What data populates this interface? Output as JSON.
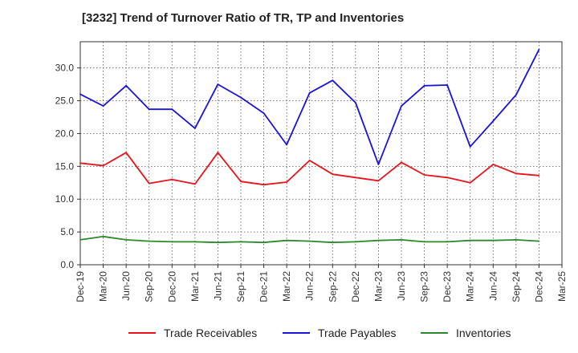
{
  "chart_data": {
    "type": "line",
    "title": "[3232]  Trend of Turnover Ratio of TR, TP and Inventories",
    "xlabel": "",
    "ylabel": "",
    "ylim": [
      0,
      34
    ],
    "yticks": [
      "0.0",
      "5.0",
      "10.0",
      "15.0",
      "20.0",
      "25.0",
      "30.0"
    ],
    "x": [
      "Dec-19",
      "Mar-20",
      "Jun-20",
      "Sep-20",
      "Dec-20",
      "Mar-21",
      "Jun-21",
      "Sep-21",
      "Dec-21",
      "Mar-22",
      "Jun-22",
      "Sep-22",
      "Dec-22",
      "Mar-23",
      "Jun-23",
      "Sep-23",
      "Dec-23",
      "Mar-24",
      "Jun-24",
      "Sep-24",
      "Dec-24",
      "Mar-25"
    ],
    "grid": true,
    "legend_position": "bottom",
    "series": [
      {
        "name": "Trade Receivables",
        "color": "#e8131b",
        "points": [
          [
            "Dec-19",
            15.5
          ],
          [
            "Mar-20",
            15.1
          ],
          [
            "Jun-20",
            17.1
          ],
          [
            "Sep-20",
            12.4
          ],
          [
            "Dec-20",
            13.0
          ],
          [
            "Mar-21",
            12.3
          ],
          [
            "Jun-21",
            17.1
          ],
          [
            "Sep-21",
            12.7
          ],
          [
            "Dec-21",
            12.2
          ],
          [
            "Mar-22",
            12.6
          ],
          [
            "Jun-22",
            15.9
          ],
          [
            "Sep-22",
            13.8
          ],
          [
            "Dec-22",
            13.3
          ],
          [
            "Mar-23",
            12.8
          ],
          [
            "Jun-23",
            15.6
          ],
          [
            "Sep-23",
            13.7
          ],
          [
            "Dec-23",
            13.3
          ],
          [
            "Mar-24",
            12.5
          ],
          [
            "Jun-24",
            15.3
          ],
          [
            "Sep-24",
            13.9
          ],
          [
            "Dec-24",
            13.6
          ]
        ]
      },
      {
        "name": "Trade Payables",
        "color": "#1a14d8",
        "points": [
          [
            "Dec-19",
            26.0
          ],
          [
            "Mar-20",
            24.2
          ],
          [
            "Jun-20",
            27.3
          ],
          [
            "Sep-20",
            23.7
          ],
          [
            "Dec-20",
            23.7
          ],
          [
            "Mar-21",
            20.8
          ],
          [
            "Jun-21",
            27.5
          ],
          [
            "Sep-21",
            25.5
          ],
          [
            "Dec-21",
            23.1
          ],
          [
            "Mar-22",
            18.3
          ],
          [
            "Jun-22",
            26.2
          ],
          [
            "Sep-22",
            28.1
          ],
          [
            "Dec-22",
            24.7
          ],
          [
            "Mar-23",
            15.3
          ],
          [
            "Jun-23",
            24.2
          ],
          [
            "Sep-23",
            27.3
          ],
          [
            "Dec-23",
            27.4
          ],
          [
            "Mar-24",
            18.0
          ],
          [
            "Jun-24",
            21.9
          ],
          [
            "Sep-24",
            25.9
          ],
          [
            "Dec-24",
            32.8
          ]
        ]
      },
      {
        "name": "Inventories",
        "color": "#2a8a2a",
        "points": [
          [
            "Dec-19",
            3.8
          ],
          [
            "Mar-20",
            4.3
          ],
          [
            "Jun-20",
            3.8
          ],
          [
            "Sep-20",
            3.6
          ],
          [
            "Dec-20",
            3.5
          ],
          [
            "Mar-21",
            3.5
          ],
          [
            "Jun-21",
            3.4
          ],
          [
            "Sep-21",
            3.5
          ],
          [
            "Dec-21",
            3.4
          ],
          [
            "Mar-22",
            3.7
          ],
          [
            "Jun-22",
            3.6
          ],
          [
            "Sep-22",
            3.4
          ],
          [
            "Dec-22",
            3.5
          ],
          [
            "Mar-23",
            3.7
          ],
          [
            "Jun-23",
            3.8
          ],
          [
            "Sep-23",
            3.5
          ],
          [
            "Dec-23",
            3.5
          ],
          [
            "Mar-24",
            3.7
          ],
          [
            "Jun-24",
            3.7
          ],
          [
            "Sep-24",
            3.8
          ],
          [
            "Dec-24",
            3.6
          ]
        ]
      }
    ]
  }
}
